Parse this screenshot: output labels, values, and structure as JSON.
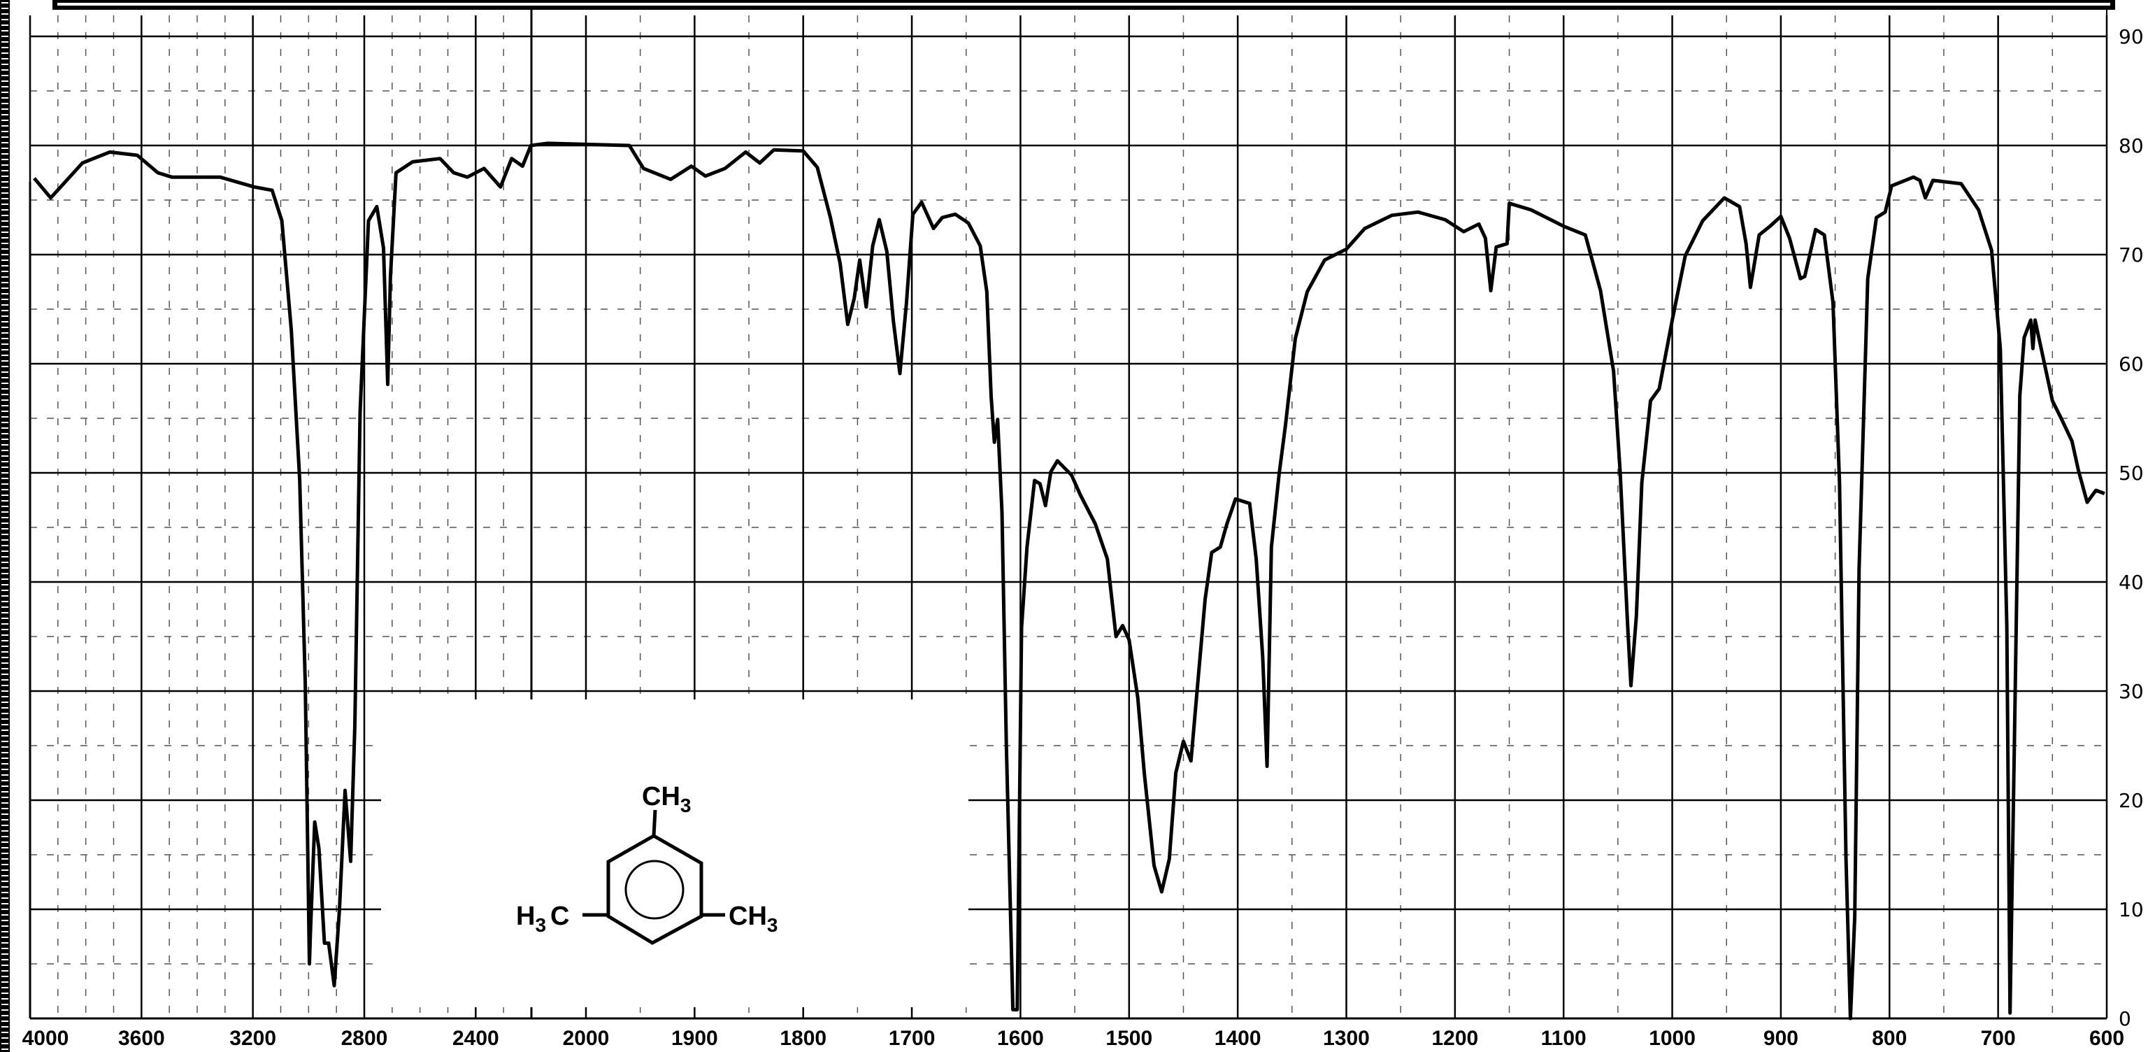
{
  "chart_data": {
    "type": "line",
    "title": "",
    "xlabel": "",
    "ylabel": "",
    "x_axis_reversed": true,
    "x_scale_break_at": 2200,
    "xlim": [
      4000,
      600
    ],
    "ylim": [
      0,
      90
    ],
    "grid": true,
    "x_tick_labels": [
      "4000",
      "3600",
      "3200",
      "2800",
      "2400",
      "2000",
      "1900",
      "1800",
      "1700",
      "1600",
      "1500",
      "1400",
      "1300",
      "1200",
      "1100",
      "1000",
      "900",
      "800",
      "700",
      "600"
    ],
    "x_tick_values": [
      4000,
      3600,
      3200,
      2800,
      2400,
      2000,
      1900,
      1800,
      1700,
      1600,
      1500,
      1400,
      1300,
      1200,
      1100,
      1000,
      900,
      800,
      700,
      600
    ],
    "y_tick_labels": [
      "90",
      "80",
      "70",
      "60",
      "50",
      "40",
      "30",
      "20",
      "10",
      "0"
    ],
    "y_tick_values": [
      90,
      80,
      70,
      60,
      50,
      40,
      30,
      20,
      10,
      0
    ],
    "line_color": "#000000",
    "series": [
      {
        "x": [
          3985,
          3926,
          3812,
          3714,
          3615,
          3541,
          3491,
          3417,
          3318,
          3195,
          3131,
          3096,
          3062,
          3032,
          3012,
          2997,
          2993,
          2978,
          2963,
          2943,
          2928,
          2908,
          2889,
          2869,
          2849,
          2834,
          2815,
          2785,
          2755,
          2731,
          2716,
          2706,
          2686,
          2627,
          2528,
          2479,
          2430,
          2370,
          2311,
          2271,
          2232,
          2202,
          2140,
          1960,
          1947,
          1922,
          1903,
          1890,
          1872,
          1853,
          1840,
          1827,
          1800,
          1787,
          1775,
          1766,
          1759,
          1753,
          1748,
          1742,
          1736,
          1730,
          1723,
          1717,
          1711,
          1705,
          1699,
          1691,
          1680,
          1672,
          1660,
          1648,
          1637,
          1631,
          1627,
          1624,
          1621,
          1617,
          1613,
          1607,
          1603,
          1599,
          1594,
          1587,
          1582,
          1577,
          1572,
          1566,
          1553,
          1545,
          1531,
          1520,
          1512,
          1506,
          1500,
          1492,
          1486,
          1477,
          1470,
          1463,
          1457,
          1450,
          1443,
          1437,
          1430,
          1424,
          1416,
          1410,
          1402,
          1389,
          1383,
          1377,
          1373,
          1369,
          1362,
          1356,
          1347,
          1336,
          1320,
          1300,
          1283,
          1258,
          1234,
          1209,
          1192,
          1178,
          1172,
          1167,
          1162,
          1152,
          1150,
          1130,
          1100,
          1080,
          1066,
          1054,
          1048,
          1041,
          1038,
          1033,
          1028,
          1020,
          1012,
          1000,
          988,
          972,
          952,
          938,
          932,
          928,
          920,
          910,
          900,
          892,
          882,
          878,
          868,
          860,
          852,
          846,
          840,
          836,
          832,
          828,
          820,
          812,
          804,
          798,
          778,
          772,
          767,
          760,
          734,
          718,
          706,
          698,
          692,
          689,
          685,
          680,
          676,
          670,
          668,
          666,
          658,
          650,
          642,
          632,
          626,
          618,
          610,
          602
        ],
        "y": [
          77.0,
          75.2,
          78.4,
          79.4,
          79.1,
          77.5,
          77.1,
          77.1,
          77.1,
          76.2,
          75.9,
          73.1,
          63.1,
          49.4,
          30.6,
          5.0,
          8.1,
          18.0,
          15.6,
          6.9,
          6.9,
          3.0,
          10.0,
          20.9,
          14.4,
          26.9,
          55.6,
          73.1,
          74.4,
          70.6,
          58.1,
          68.0,
          77.5,
          78.5,
          78.8,
          77.5,
          77.1,
          77.9,
          76.2,
          78.8,
          78.1,
          80.0,
          80.2,
          80.0,
          77.9,
          76.9,
          78.1,
          77.2,
          77.9,
          79.4,
          78.4,
          79.6,
          79.5,
          78.0,
          73.4,
          69.2,
          63.6,
          66.0,
          69.5,
          65.2,
          70.8,
          73.2,
          70.3,
          63.9,
          59.1,
          65.5,
          73.7,
          74.8,
          72.4,
          73.4,
          73.7,
          72.9,
          70.8,
          66.6,
          57.0,
          52.8,
          54.9,
          46.4,
          25.2,
          0.8,
          0.8,
          35.8,
          43.2,
          49.3,
          49.0,
          47.0,
          50.1,
          51.1,
          49.8,
          48.0,
          45.3,
          42.1,
          35.0,
          36.0,
          34.7,
          29.4,
          22.5,
          14.0,
          11.6,
          14.6,
          22.5,
          25.4,
          23.6,
          30.5,
          38.4,
          42.7,
          43.2,
          45.3,
          47.6,
          47.2,
          42.1,
          33.1,
          23.1,
          43.2,
          49.8,
          54.4,
          62.3,
          66.6,
          69.5,
          70.5,
          72.4,
          73.6,
          73.9,
          73.2,
          72.1,
          72.8,
          71.5,
          66.7,
          70.7,
          71.0,
          74.7,
          74.1,
          72.6,
          71.8,
          66.7,
          59.3,
          50.2,
          35.9,
          30.5,
          36.9,
          49.1,
          56.6,
          57.7,
          64.0,
          69.9,
          73.1,
          75.2,
          74.4,
          71.0,
          67.0,
          71.8,
          72.6,
          73.5,
          71.5,
          67.8,
          68.0,
          72.3,
          71.8,
          65.6,
          49.1,
          14.6,
          0.0,
          9.3,
          41.2,
          67.8,
          73.4,
          73.9,
          76.3,
          77.1,
          76.8,
          75.2,
          76.8,
          76.5,
          74.1,
          70.4,
          61.4,
          35.9,
          0.5,
          25.2,
          57.1,
          62.4,
          64.0,
          61.4,
          64.0,
          60.3,
          56.6,
          55.0,
          52.9,
          50.2,
          47.3,
          48.4,
          48.1
        ]
      }
    ]
  },
  "structure": {
    "top": {
      "main": "CH",
      "sub": "3"
    },
    "left": {
      "pre": "H",
      "sub": "3",
      "post": "C"
    },
    "right": {
      "main": "CH",
      "sub": "3"
    }
  }
}
